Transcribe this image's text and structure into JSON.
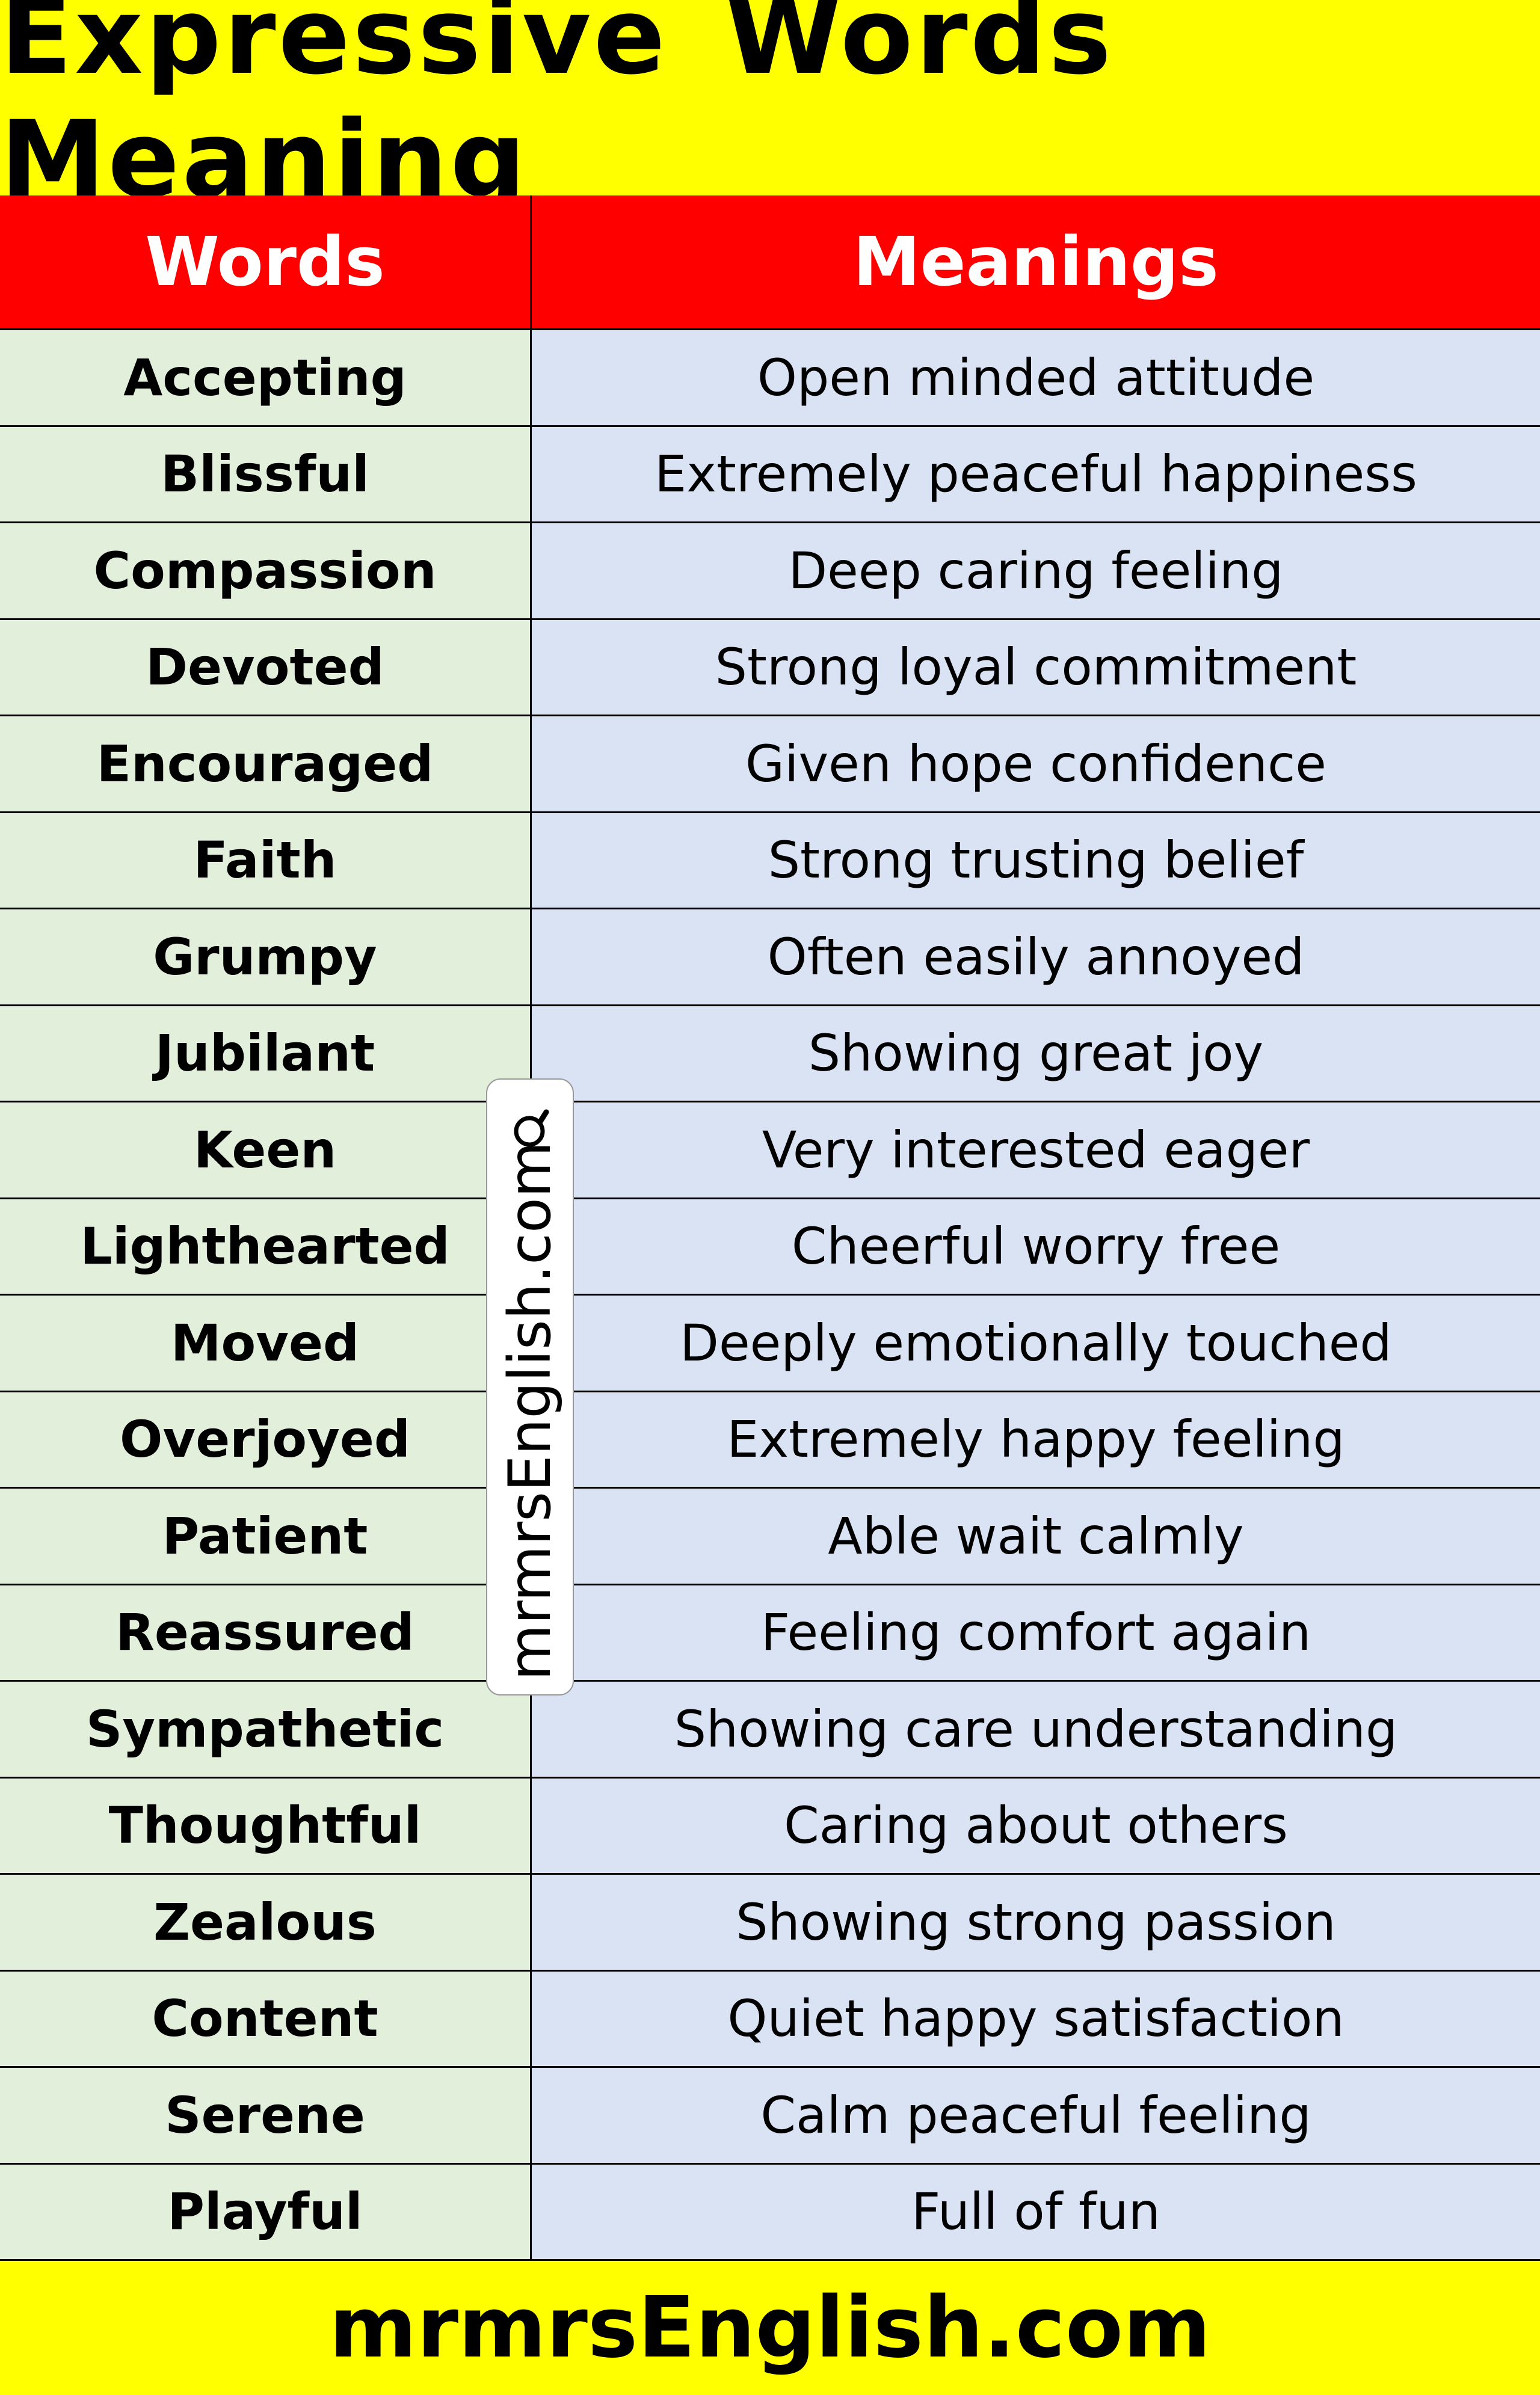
{
  "title": "Expressive Words Meaning",
  "header": {
    "words": "Words",
    "meanings": "Meanings"
  },
  "rows": [
    {
      "word": "Accepting",
      "meaning": "Open minded attitude"
    },
    {
      "word": "Blissful",
      "meaning": "Extremely peaceful happiness"
    },
    {
      "word": "Compassion",
      "meaning": "Deep caring feeling"
    },
    {
      "word": "Devoted",
      "meaning": "Strong loyal commitment"
    },
    {
      "word": "Encouraged",
      "meaning": "Given hope confidence"
    },
    {
      "word": "Faith",
      "meaning": "Strong trusting belief"
    },
    {
      "word": "Grumpy",
      "meaning": "Often easily annoyed"
    },
    {
      "word": "Jubilant",
      "meaning": "Showing great joy"
    },
    {
      "word": "Keen",
      "meaning": "Very interested eager"
    },
    {
      "word": "Lighthearted",
      "meaning": "Cheerful worry free"
    },
    {
      "word": "Moved",
      "meaning": "Deeply emotionally touched"
    },
    {
      "word": "Overjoyed",
      "meaning": "Extremely happy feeling"
    },
    {
      "word": "Patient",
      "meaning": "Able wait calmly"
    },
    {
      "word": "Reassured",
      "meaning": "Feeling comfort again"
    },
    {
      "word": "Sympathetic",
      "meaning": "Showing care understanding"
    },
    {
      "word": "Thoughtful",
      "meaning": "Caring about others"
    },
    {
      "word": "Zealous",
      "meaning": "Showing strong passion"
    },
    {
      "word": "Content",
      "meaning": "Quiet happy satisfaction"
    },
    {
      "word": "Serene",
      "meaning": "Calm peaceful feeling"
    },
    {
      "word": "Playful",
      "meaning": "Full of fun"
    }
  ],
  "watermark": {
    "text": "mrmrsEnglish.com",
    "icon": "magnifier-icon"
  },
  "footer": "mrmrsEnglish.com",
  "colors": {
    "title_bg": "#ffff00",
    "header_bg": "#ff0000",
    "words_bg": "#e2efda",
    "meanings_bg": "#dae3f3"
  }
}
